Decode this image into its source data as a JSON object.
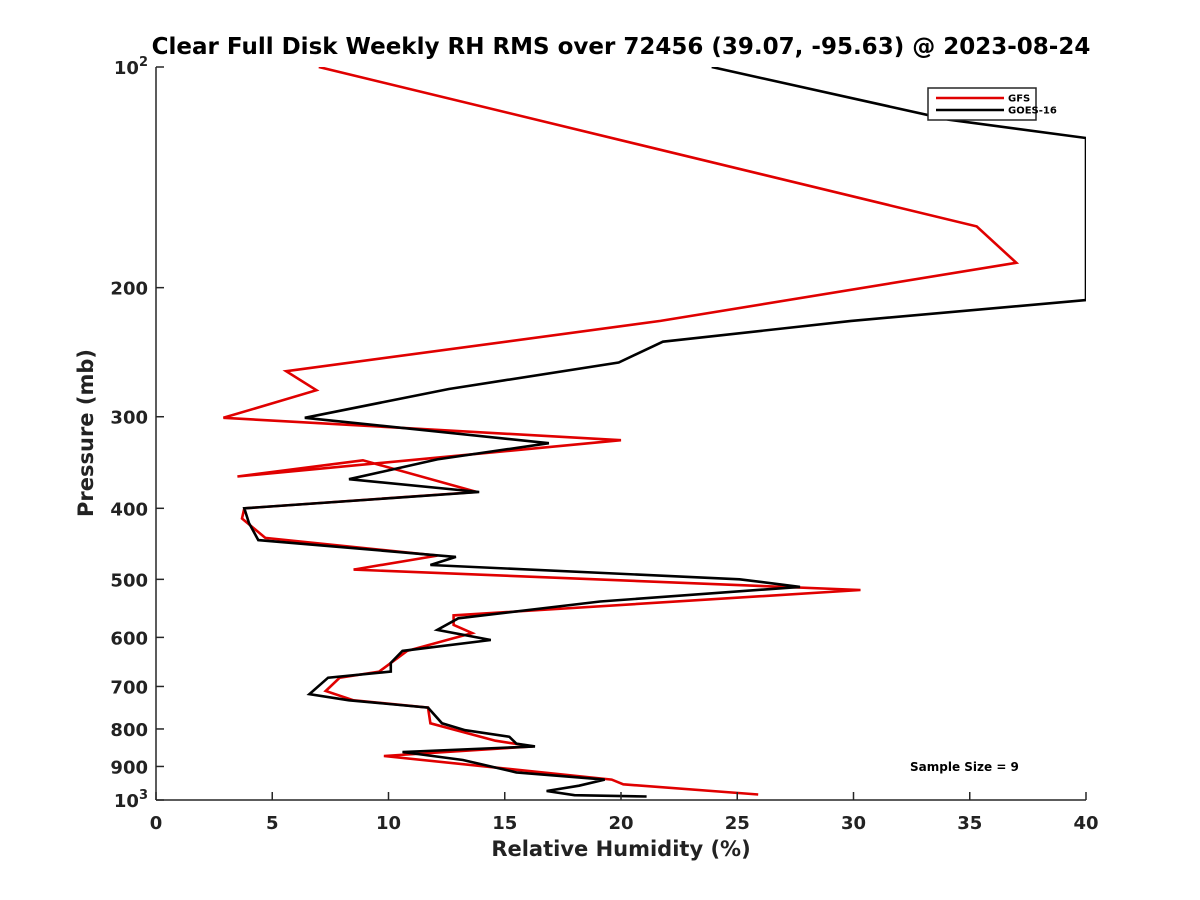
{
  "chart_data": {
    "type": "line",
    "title": "Clear Full Disk Weekly RH RMS over 72456 (39.07, -95.63) @ 2023-08-24",
    "xlabel": "Relative Humidity (%)",
    "ylabel": "Pressure (mb)",
    "xlim": [
      0,
      40
    ],
    "ylim": [
      100,
      1000
    ],
    "yscale": "log",
    "y_reversed": true,
    "x_ticks": [
      0,
      5,
      10,
      15,
      20,
      25,
      30,
      35,
      40
    ],
    "x_tick_labels": [
      "0",
      "5",
      "10",
      "15",
      "20",
      "25",
      "30",
      "35",
      "40"
    ],
    "y_ticks": [
      100,
      200,
      300,
      400,
      500,
      600,
      700,
      800,
      900,
      1000
    ],
    "y_tick_labels": [
      {
        "base": "10",
        "exp": "2"
      },
      {
        "text": "200"
      },
      {
        "text": "300"
      },
      {
        "text": "400"
      },
      {
        "text": "500"
      },
      {
        "text": "600"
      },
      {
        "text": "700"
      },
      {
        "text": "800"
      },
      {
        "text": "900"
      },
      {
        "base": "10",
        "exp": "3"
      }
    ],
    "legend_position": "top-right",
    "annotation": "Sample Size = 9",
    "series": [
      {
        "name": "GFS",
        "color": "#e00000",
        "points": [
          [
            7.0,
            100
          ],
          [
            35.3,
            165
          ],
          [
            37.0,
            185
          ],
          [
            21.7,
            222
          ],
          [
            5.6,
            260
          ],
          [
            6.9,
            276
          ],
          [
            2.9,
            301
          ],
          [
            20.0,
            323
          ],
          [
            3.5,
            362
          ],
          [
            8.9,
            344
          ],
          [
            13.8,
            380
          ],
          [
            3.8,
            400
          ],
          [
            3.7,
            413
          ],
          [
            4.7,
            439
          ],
          [
            12.1,
            464
          ],
          [
            8.5,
            485
          ],
          [
            30.3,
            517
          ],
          [
            12.8,
            560
          ],
          [
            12.8,
            577
          ],
          [
            13.6,
            592
          ],
          [
            10.8,
            626
          ],
          [
            9.6,
            668
          ],
          [
            7.9,
            681
          ],
          [
            7.3,
            710
          ],
          [
            8.5,
            731
          ],
          [
            11.7,
            748
          ],
          [
            11.8,
            786
          ],
          [
            14.6,
            830
          ],
          [
            16.2,
            845
          ],
          [
            9.8,
            871
          ],
          [
            19.6,
            938
          ],
          [
            20.1,
            952
          ],
          [
            25.9,
            983
          ]
        ]
      },
      {
        "name": "GOES-16",
        "color": "#000000",
        "points": [
          [
            23.9,
            100
          ],
          [
            34.1,
            118
          ],
          [
            40.0,
            125
          ],
          [
            40.0,
            208
          ],
          [
            29.9,
            222
          ],
          [
            21.8,
            237
          ],
          [
            19.9,
            253
          ],
          [
            12.6,
            275
          ],
          [
            6.4,
            301
          ],
          [
            16.9,
            326
          ],
          [
            12.1,
            343
          ],
          [
            8.3,
            365
          ],
          [
            13.9,
            380
          ],
          [
            3.8,
            400
          ],
          [
            4.0,
            419
          ],
          [
            4.4,
            442
          ],
          [
            12.9,
            466
          ],
          [
            11.8,
            478
          ],
          [
            25.1,
            500
          ],
          [
            27.7,
            512
          ],
          [
            19.1,
            536
          ],
          [
            13.0,
            565
          ],
          [
            12.1,
            586
          ],
          [
            14.4,
            605
          ],
          [
            10.6,
            626
          ],
          [
            10.1,
            650
          ],
          [
            10.1,
            668
          ],
          [
            7.4,
            681
          ],
          [
            6.6,
            717
          ],
          [
            8.3,
            731
          ],
          [
            11.7,
            748
          ],
          [
            12.3,
            786
          ],
          [
            13.3,
            803
          ],
          [
            15.2,
            820
          ],
          [
            15.5,
            838
          ],
          [
            16.3,
            845
          ],
          [
            10.6,
            860
          ],
          [
            13.2,
            882
          ],
          [
            15.5,
            917
          ],
          [
            19.3,
            938
          ],
          [
            18.2,
            956
          ],
          [
            16.8,
            972
          ],
          [
            18.0,
            985
          ],
          [
            21.1,
            989
          ]
        ]
      }
    ]
  }
}
